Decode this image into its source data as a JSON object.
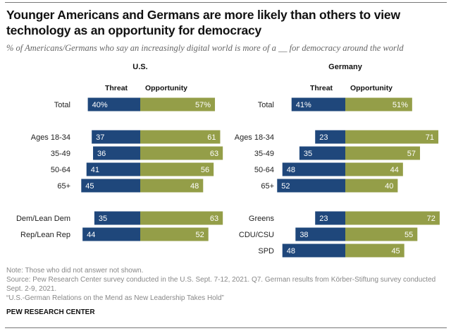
{
  "chart_data": {
    "type": "bar",
    "subtype": "diverging-horizontal",
    "title": "Younger Americans and Germans are more likely than others to view technology as an opportunity for democracy",
    "subtitle": "% of Americans/Germans who say an increasingly digital world is more of a __ for democracy around the world",
    "legend": [
      "Threat",
      "Opportunity"
    ],
    "colors": {
      "Threat": "#1f477b",
      "Opportunity": "#949e48"
    },
    "panels": [
      {
        "name": "U.S.",
        "rows": [
          {
            "label": "Total",
            "threat": 40,
            "opportunity": 57,
            "pct": true
          },
          {
            "label": "Ages 18-34",
            "threat": 37,
            "opportunity": 61
          },
          {
            "label": "35-49",
            "threat": 36,
            "opportunity": 63
          },
          {
            "label": "50-64",
            "threat": 41,
            "opportunity": 56
          },
          {
            "label": "65+",
            "threat": 45,
            "opportunity": 48
          },
          {
            "label": "Dem/Lean Dem",
            "threat": 35,
            "opportunity": 63
          },
          {
            "label": "Rep/Lean Rep",
            "threat": 44,
            "opportunity": 52
          }
        ]
      },
      {
        "name": "Germany",
        "rows": [
          {
            "label": "Total",
            "threat": 41,
            "opportunity": 51,
            "pct": true
          },
          {
            "label": "Ages 18-34",
            "threat": 23,
            "opportunity": 71
          },
          {
            "label": "35-49",
            "threat": 35,
            "opportunity": 57
          },
          {
            "label": "50-64",
            "threat": 48,
            "opportunity": 44
          },
          {
            "label": "65+",
            "threat": 52,
            "opportunity": 40
          },
          {
            "label": "Greens",
            "threat": 23,
            "opportunity": 72
          },
          {
            "label": "CDU/CSU",
            "threat": 38,
            "opportunity": 55
          },
          {
            "label": "SPD",
            "threat": 48,
            "opportunity": 45
          }
        ]
      }
    ]
  },
  "footer": {
    "note": "Note: Those who did not answer not shown.",
    "source": "Source: Pew Research Center survey conducted in the U.S. Sept. 7-12, 2021. Q7. German results from Körber-Stiftung survey conducted Sept. 2-9, 2021.",
    "report": "“U.S.-German Relations on the Mend as New Leadership Takes Hold”",
    "brand": "PEW RESEARCH CENTER"
  }
}
